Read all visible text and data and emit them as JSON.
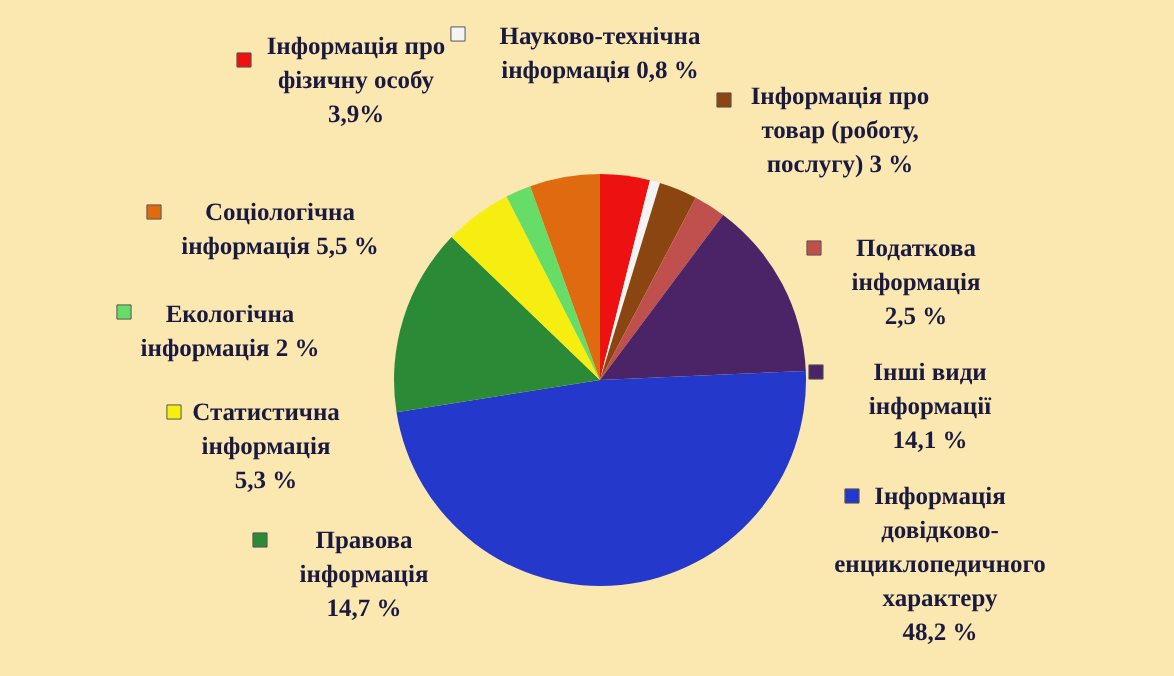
{
  "chart_data": {
    "type": "pie",
    "categories": [
      "Інформація про фізичну особу",
      "Науково-технічна інформація",
      "Інформація про товар (роботу, послугу)",
      "Податкова інформація",
      "Інші види інформації",
      "Інформація довідково-енциклопедичного характеру",
      "Правова інформація",
      "Статистична інформація",
      "Екологічна інформація",
      "Соціологічна інформація"
    ],
    "values": [
      3.9,
      0.8,
      3,
      2.5,
      14.1,
      48.2,
      14.7,
      5.3,
      2,
      5.5
    ],
    "value_labels": [
      "3,9%",
      "0,8 %",
      "3 %",
      "2,5 %",
      "14,1 %",
      "48,2 %",
      "14,7 %",
      "5,3 %",
      "2 %",
      "5,5 %"
    ],
    "colors": [
      "#ee1111",
      "#f4f4f4",
      "#8a4510",
      "#c0504d",
      "#4a2466",
      "#2438cc",
      "#2a8a36",
      "#f5ee10",
      "#66dd66",
      "#e06a10"
    ],
    "legend": "top left"
  }
}
